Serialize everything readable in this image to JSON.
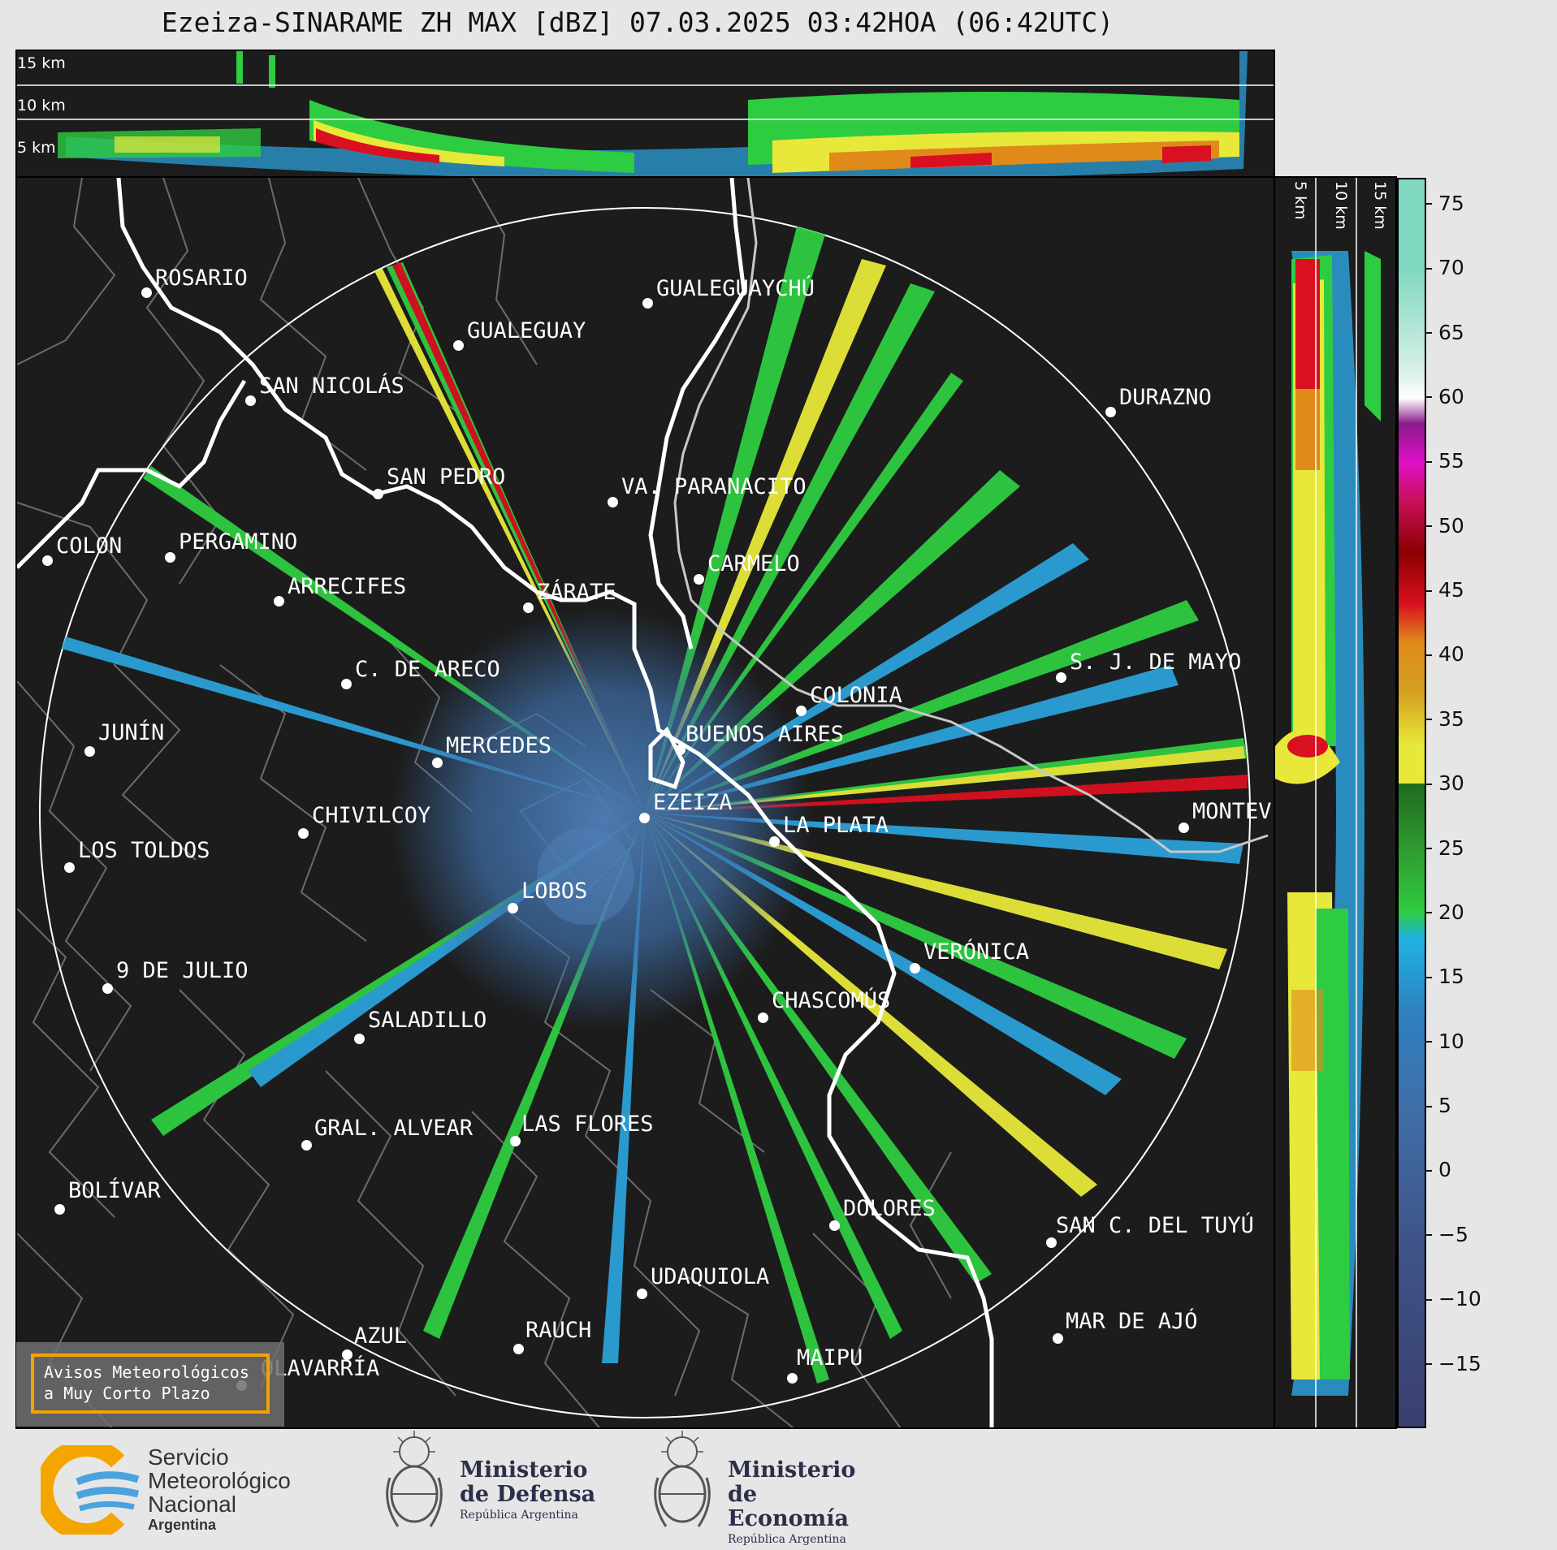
{
  "title": "Ezeiza-SINARAME ZH MAX [dBZ] 07.03.2025 03:42HOA (06:42UTC)",
  "top_panel": {
    "height_labels": [
      "15 km",
      "10 km",
      "5 km"
    ]
  },
  "side_panel": {
    "height_labels": [
      "5 km",
      "10 km",
      "15 km"
    ]
  },
  "cities": [
    "ROSARIO",
    "GUALEGUAYCHÚ",
    "GUALEGUAY",
    "SAN NICOLÁS",
    "DURAZNO",
    "SAN PEDRO",
    "VA. PARANACITO",
    "COLON",
    "PERGAMINO",
    "CARMELO",
    "ARRECIFES",
    "ZÁRATE",
    "S. J. DE MAYO",
    "C. DE ARECO",
    "COLONIA",
    "JUNÍN",
    "MERCEDES",
    "BUENOS AIRES",
    "EZEIZA",
    "MONTEV",
    "CHIVILCOY",
    "LA PLATA",
    "LOS TOLDOS",
    "LOBOS",
    "VERÓNICA",
    "9 DE JULIO",
    "CHASCOMÚS",
    "SALADILLO",
    "GRAL. ALVEAR",
    "LAS FLORES",
    "BOLÍVAR",
    "DOLORES",
    "SAN C. DEL TUYÚ",
    "UDAQUIOLA",
    "AZUL",
    "RAUCH",
    "MAR DE AJÓ",
    "OLAVARRÍA",
    "MAIPU"
  ],
  "colorbar": {
    "unit": "dBZ",
    "ticks": [
      "75",
      "70",
      "65",
      "60",
      "55",
      "50",
      "45",
      "40",
      "35",
      "30",
      "25",
      "20",
      "15",
      "10",
      "5",
      "0",
      "−5",
      "−10",
      "−15"
    ],
    "range": [
      -20,
      77
    ],
    "colors": {
      "low": "#3a3f6e",
      "mid_blue": "#2e7fbf",
      "cyan": "#1fb3e0",
      "green": "#2ecc40",
      "dark_green": "#1f6b1f",
      "yellow": "#e8e83a",
      "orange": "#e08a1a",
      "red": "#d81020",
      "dark_red": "#8b0000",
      "magenta": "#e010c8",
      "purple": "#8b1a8b",
      "white": "#ffffff",
      "teal": "#80d8c0"
    }
  },
  "warning_box": {
    "line1": "Avisos Meteorológicos",
    "line2": "a Muy Corto Plazo",
    "border_color": "#f3a200"
  },
  "logos": {
    "smn": {
      "line1": "Servicio",
      "line2": "Meteorológico",
      "line3": "Nacional",
      "line4": "Argentina"
    },
    "defensa": {
      "line1": "Ministerio",
      "line2": "de Defensa",
      "line3": "República Argentina"
    },
    "economia": {
      "line1": "Ministerio",
      "line2": "de Economía",
      "line3": "República Argentina"
    }
  }
}
